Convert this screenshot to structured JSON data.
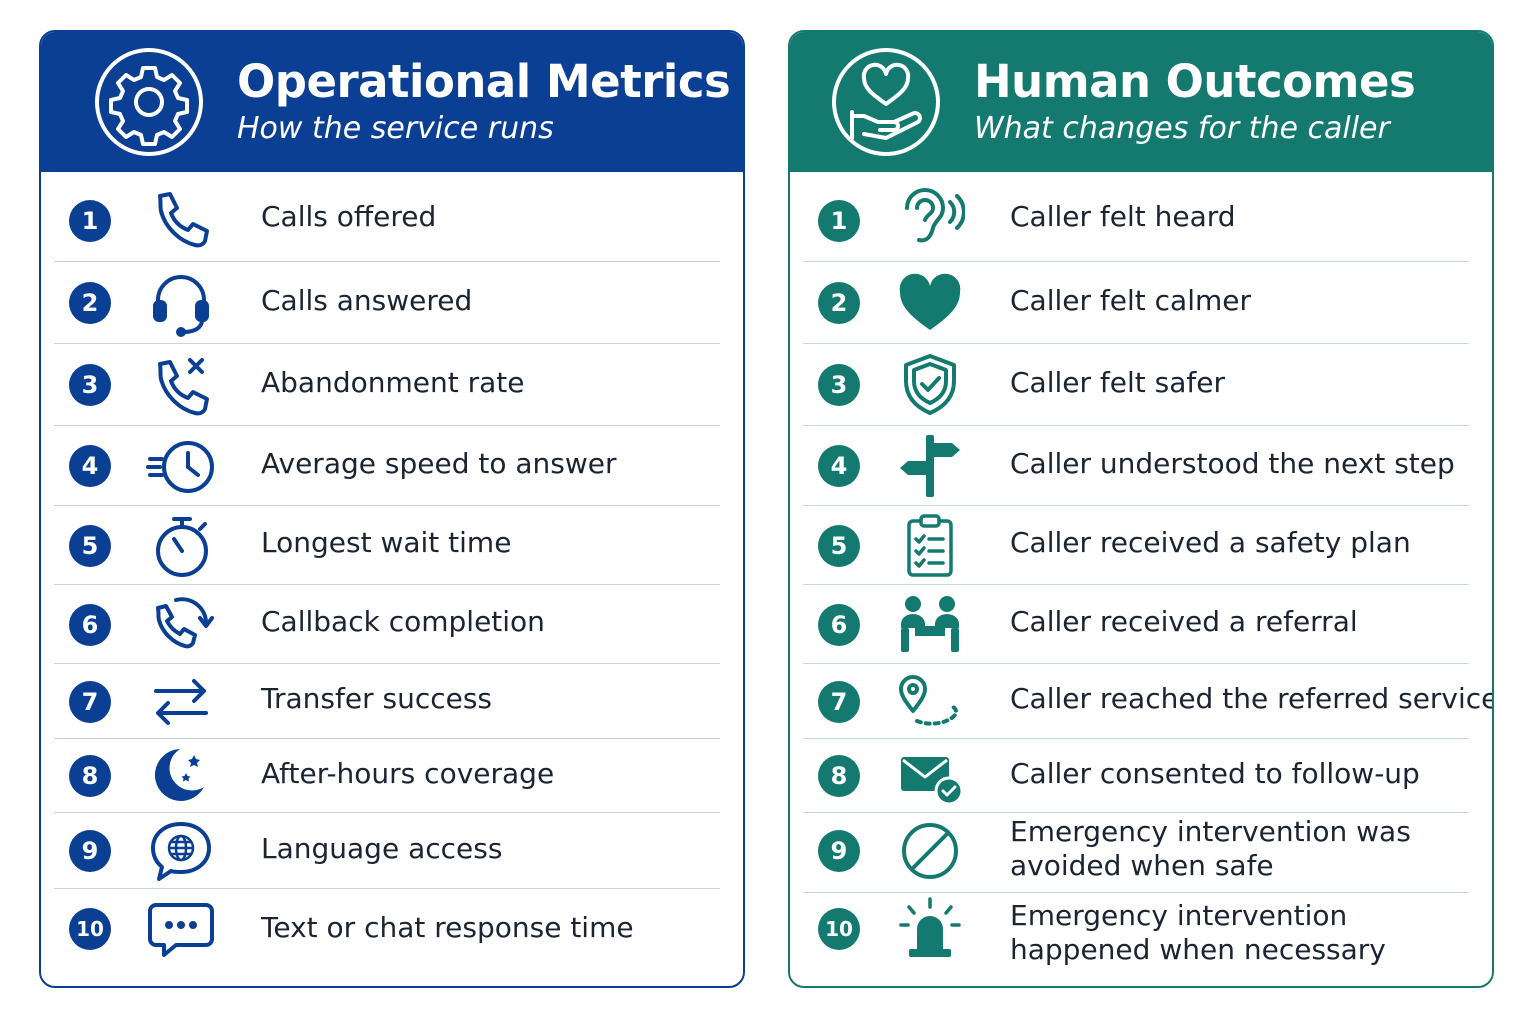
{
  "left_panel": {
    "title": "Operational Metrics",
    "subtitle": "How the service runs",
    "icon": "gear-icon",
    "color": "#0b3f93",
    "items": [
      {
        "num": "1",
        "label": "Calls offered",
        "icon": "phone-icon"
      },
      {
        "num": "2",
        "label": "Calls answered",
        "icon": "headset-icon"
      },
      {
        "num": "3",
        "label": "Abandonment rate",
        "icon": "phone-missed-icon"
      },
      {
        "num": "4",
        "label": "Average speed to answer",
        "icon": "fast-clock-icon"
      },
      {
        "num": "5",
        "label": "Longest wait time",
        "icon": "stopwatch-icon"
      },
      {
        "num": "6",
        "label": "Callback completion",
        "icon": "phone-callback-icon"
      },
      {
        "num": "7",
        "label": "Transfer success",
        "icon": "transfer-arrows-icon"
      },
      {
        "num": "8",
        "label": "After-hours coverage",
        "icon": "moon-stars-icon"
      },
      {
        "num": "9",
        "label": "Language access",
        "icon": "globe-speech-icon"
      },
      {
        "num": "10",
        "label": "Text or chat response time",
        "icon": "chat-dots-icon"
      }
    ]
  },
  "right_panel": {
    "title": "Human Outcomes",
    "subtitle": "What changes for the caller",
    "icon": "heart-hand-icon",
    "color": "#147a70",
    "items": [
      {
        "num": "1",
        "label": "Caller felt heard",
        "icon": "ear-icon"
      },
      {
        "num": "2",
        "label": "Caller felt calmer",
        "icon": "heart-icon"
      },
      {
        "num": "3",
        "label": "Caller felt safer",
        "icon": "shield-check-icon"
      },
      {
        "num": "4",
        "label": "Caller understood the next step",
        "icon": "signpost-icon"
      },
      {
        "num": "5",
        "label": "Caller received a safety plan",
        "icon": "clipboard-checklist-icon"
      },
      {
        "num": "6",
        "label": "Caller received a referral",
        "icon": "people-handshake-icon"
      },
      {
        "num": "7",
        "label": "Caller reached the referred service",
        "icon": "location-path-icon"
      },
      {
        "num": "8",
        "label": "Caller consented to follow-up",
        "icon": "mail-check-icon"
      },
      {
        "num": "9",
        "label": "Emergency intervention was avoided when safe",
        "icon": "prohibited-icon"
      },
      {
        "num": "10",
        "label": "Emergency intervention happened when necessary",
        "icon": "siren-icon"
      }
    ]
  }
}
